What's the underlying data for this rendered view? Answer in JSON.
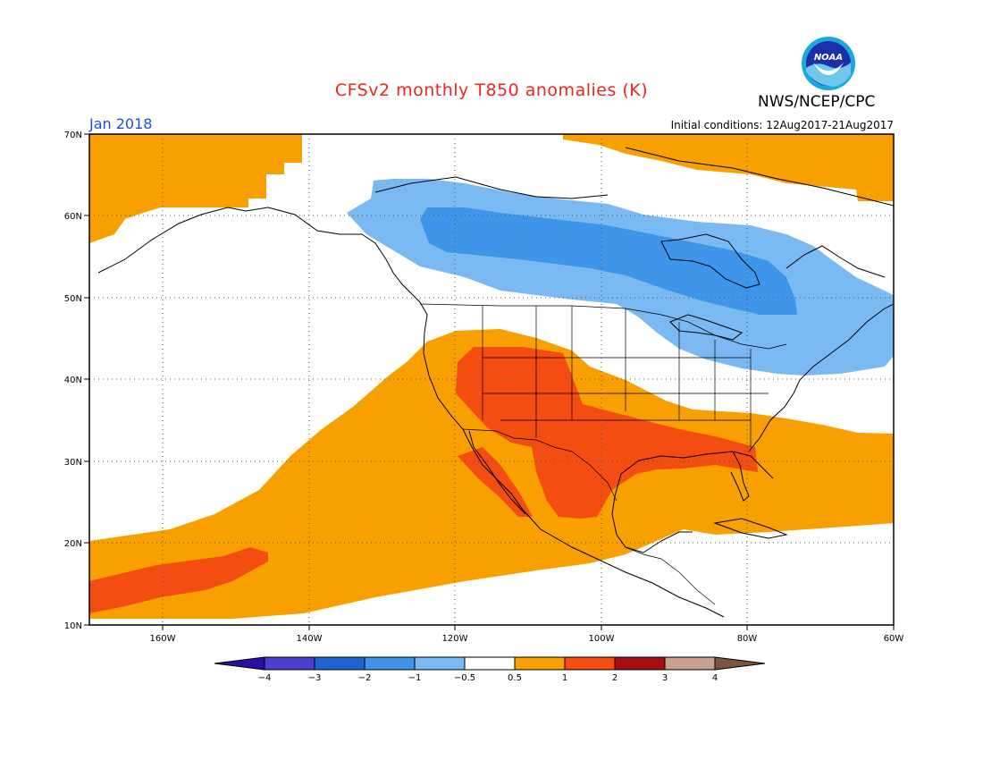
{
  "title": "CFSv2 monthly T850 anomalies (K)",
  "org": "NWS/NCEP/CPC",
  "logo_text": "NOAA",
  "valid_month": "Jan 2018",
  "initial_conditions": "Initial conditions: 12Aug2017-21Aug2017",
  "lat_labels": [
    "70N",
    "60N",
    "50N",
    "40N",
    "30N",
    "20N",
    "10N"
  ],
  "lon_labels": [
    "160W",
    "140W",
    "120W",
    "100W",
    "80W",
    "60W"
  ],
  "colorbar": {
    "labels": [
      "-4",
      "-3",
      "-2",
      "-1",
      "-0.5",
      "0.5",
      "1",
      "2",
      "3",
      "4"
    ],
    "colors": [
      "#2b0fa0",
      "#4b3ecb",
      "#1f63cf",
      "#3e95ea",
      "#7ab9f2",
      "#ffffff",
      "#f7a000",
      "#f44d12",
      "#a60f0f",
      "#c9a08d",
      "#7a5540"
    ]
  },
  "chart_data": {
    "type": "heatmap",
    "variable": "T850 anomalies",
    "units": "K",
    "extent": {
      "lon": [
        -170,
        -60
      ],
      "lat": [
        10,
        70
      ]
    },
    "regions": [
      {
        "name": "Alaska / Bering",
        "class": "0.5 to 1"
      },
      {
        "name": "Greenland coast",
        "class": "0.5 to 1"
      },
      {
        "name": "Central Canada",
        "class": "-1 to -0.5"
      },
      {
        "name": "Hudson Bay belt",
        "class": "-2 to -1"
      },
      {
        "name": "Northeast US",
        "class": "-1 to -0.5"
      },
      {
        "name": "Subtropical Pacific",
        "class": "0.5 to 1"
      },
      {
        "name": "Hawaii band",
        "class": "1 to 2"
      },
      {
        "name": "Southwest US",
        "class": "1 to 2"
      },
      {
        "name": "Texas / Mexico",
        "class": "1 to 2"
      },
      {
        "name": "Gulf Coast / Southeast",
        "class": "1 to 2"
      },
      {
        "name": "Western Atlantic",
        "class": "0.5 to 1"
      }
    ]
  }
}
